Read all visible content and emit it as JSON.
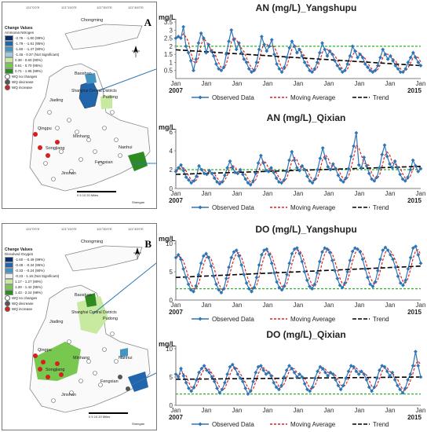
{
  "panels": [
    {
      "letter": "A",
      "legend_title": "Change Values",
      "legend_subtitle": "Ammonia Nitrogen",
      "legend_items": [
        {
          "label": "-2.76 - -1.80 (99%)",
          "color": "#08306b"
        },
        {
          "label": "-1.79 - -1.61 (95%)",
          "color": "#2166ac"
        },
        {
          "label": "-1.60 - -1.47 (90%)",
          "color": "#4393c3"
        },
        {
          "label": "-1.46 - 0.37 (Not Significant)",
          "color": "#9ecae1"
        },
        {
          "label": "0.38 - 0.60 (90%)",
          "color": "#c7e9a0"
        },
        {
          "label": "0.61 - 0.70 (95%)",
          "color": "#78c850"
        },
        {
          "label": "0.71 - 1.95 (99%)",
          "color": "#2e8b22"
        }
      ],
      "point_items": [
        {
          "label": "WQ no changes",
          "color": "#ffffff"
        },
        {
          "label": "WQ decrease",
          "color": "#555555"
        },
        {
          "label": "WQ increase",
          "color": "#d42020"
        }
      ]
    },
    {
      "letter": "B",
      "legend_title": "Change Values",
      "legend_subtitle": "Dissolved Oxygen",
      "legend_items": [
        {
          "label": "-1.60 - -0.49 (99%)",
          "color": "#08306b"
        },
        {
          "label": "-0.48 - -0.34 (95%)",
          "color": "#2166ac"
        },
        {
          "label": "-0.33 - -0.24 (90%)",
          "color": "#4393c3"
        },
        {
          "label": "-0.23 - 1.16 (Not Significant)",
          "color": "#f0f0f0"
        },
        {
          "label": "1.17 - 1.27 (90%)",
          "color": "#c7e9a0"
        },
        {
          "label": "1.28 - 1.42 (95%)",
          "color": "#78c850"
        },
        {
          "label": "1.43 - 2.24 (99%)",
          "color": "#2e8b22"
        }
      ],
      "point_items": [
        {
          "label": "WQ no changes",
          "color": "#ffffff"
        },
        {
          "label": "WQ decrease",
          "color": "#555555"
        },
        {
          "label": "WQ increase",
          "color": "#d42020"
        }
      ]
    }
  ],
  "map_labels": [
    "Chongming",
    "Baoshan",
    "Jiading",
    "Shanghai Central Districts",
    "Pudong",
    "Qingpu",
    "Minhang",
    "Songjiang",
    "Nanhui",
    "Fengxian",
    "Jinshan"
  ],
  "map_scale": [
    "0",
    "5",
    "10",
    "20",
    "Miles"
  ],
  "map_credit": "Shengan",
  "graticule": [
    "121°0'0\"E",
    "121°15'0\"E",
    "121°30'0\"E",
    "121°45'0\"E",
    "31°45'0\"N",
    "31°30'0\"N",
    "31°15'0\"N",
    "31°0'0\"N"
  ],
  "colors": {
    "observed": "#2e75b6",
    "moving": "#e02020",
    "trend": "#000000",
    "threshold": "#2db52d"
  },
  "chart_data": [
    {
      "type": "line",
      "title": "AN (mg/L)_Yangshupu",
      "ylabel": "mg/L",
      "ylim": [
        0,
        3.5
      ],
      "yticks": [
        0.5,
        1,
        1.5,
        2,
        2.5,
        3,
        3.5
      ],
      "ytick_labels": [
        "0.5",
        "1",
        "1.5",
        "2",
        "2.5",
        "3",
        "3.5"
      ],
      "x_start_label": "2007",
      "x_end_label": "2015",
      "month_labels": [
        "Jan",
        "Jan",
        "Jan",
        "Jan",
        "Jan",
        "Jan",
        "Jan",
        "Jan",
        "Jan"
      ],
      "threshold": 2.0,
      "trend": [
        1.78,
        0.8
      ],
      "legend": [
        "Observed Data",
        "Moving Average",
        "Trend"
      ],
      "values": [
        2.5,
        2.6,
        2.5,
        3.2,
        2.0,
        1.6,
        1.1,
        0.5,
        1.2,
        2.2,
        2.8,
        2.5,
        1.6,
        2.1,
        1.7,
        1.4,
        0.9,
        0.6,
        0.5,
        0.7,
        1.5,
        2.3,
        3.0,
        2.4,
        1.8,
        2.2,
        1.6,
        1.2,
        1.0,
        0.6,
        0.4,
        0.5,
        1.0,
        1.8,
        2.6,
        2.1,
        1.7,
        2.0,
        2.4,
        1.5,
        0.9,
        0.6,
        0.4,
        0.7,
        1.3,
        1.9,
        2.3,
        2.0,
        1.6,
        1.8,
        1.4,
        1.0,
        0.8,
        0.5,
        0.4,
        0.6,
        1.0,
        1.6,
        2.2,
        1.8,
        1.4,
        1.7,
        1.5,
        1.1,
        0.8,
        0.6,
        0.4,
        0.5,
        0.9,
        1.4,
        2.0,
        1.7,
        1.3,
        1.5,
        1.3,
        0.9,
        0.7,
        0.5,
        0.4,
        0.5,
        0.8,
        1.3,
        1.8,
        1.5,
        1.2,
        1.4,
        1.1,
        0.8,
        0.6,
        0.4,
        0.4,
        0.6,
        1.0,
        1.3,
        1.6,
        1.3,
        1.0,
        0.8
      ]
    },
    {
      "type": "line",
      "title": "AN (mg/L)_Qixian",
      "ylabel": "mg/L",
      "ylim": [
        0,
        6
      ],
      "yticks": [
        0,
        2,
        4,
        6
      ],
      "ytick_labels": [
        "0",
        "2",
        "4",
        "6"
      ],
      "x_start_label": "2007",
      "x_end_label": "2015",
      "month_labels": [
        "Jan",
        "Jan",
        "Jan",
        "Jan",
        "Jan",
        "Jan",
        "Jan",
        "Jan",
        "Jan"
      ],
      "threshold": 2.0,
      "trend": [
        1.5,
        2.35
      ],
      "legend": [
        "Observed Data",
        "Moving Average",
        "Trend"
      ],
      "values": [
        1.8,
        2.2,
        2.5,
        1.9,
        1.2,
        0.9,
        0.6,
        0.8,
        1.3,
        2.4,
        2.0,
        1.6,
        1.5,
        1.9,
        1.6,
        1.1,
        0.7,
        0.5,
        0.7,
        1.4,
        2.2,
        2.9,
        2.2,
        1.7,
        1.6,
        2.0,
        1.5,
        1.0,
        0.6,
        0.4,
        0.8,
        1.6,
        2.7,
        3.5,
        2.7,
        1.9,
        1.8,
        2.2,
        1.7,
        1.1,
        0.7,
        0.6,
        0.9,
        1.8,
        3.0,
        3.9,
        3.0,
        2.2,
        1.9,
        2.4,
        2.0,
        1.3,
        0.8,
        0.6,
        1.0,
        2.0,
        3.2,
        4.3,
        3.2,
        2.3,
        2.0,
        2.6,
        2.1,
        1.4,
        0.9,
        0.7,
        1.1,
        2.1,
        3.4,
        4.5,
        5.9,
        2.5,
        2.2,
        3.3,
        2.4,
        1.6,
        1.0,
        0.8,
        1.2,
        2.2,
        3.6,
        4.6,
        3.4,
        2.6,
        2.2,
        2.9,
        2.2,
        1.5,
        1.0,
        0.8,
        1.2,
        2.0,
        3.0,
        2.4,
        1.8,
        2.1
      ]
    },
    {
      "type": "line",
      "title": "DO (mg/L)_Yangshupu",
      "ylabel": "mg/L",
      "ylim": [
        0,
        10
      ],
      "yticks": [
        0,
        5,
        10
      ],
      "ytick_labels": [
        "0",
        "5",
        "10"
      ],
      "x_start_label": "2007",
      "x_end_label": "2015",
      "month_labels": [
        "Jan",
        "Jan",
        "Jan",
        "Jan",
        "Jan",
        "Jan",
        "Jan",
        "Jan",
        "Jan"
      ],
      "threshold": 2.0,
      "trend": [
        4.0,
        6.0
      ],
      "legend": [
        "Observed Data",
        "Moving Average",
        "Trend"
      ],
      "values": [
        7.5,
        8.0,
        7.2,
        5.5,
        4.0,
        2.8,
        1.8,
        1.5,
        2.5,
        4.5,
        6.5,
        7.8,
        8.2,
        7.5,
        6.0,
        4.2,
        2.8,
        1.8,
        1.3,
        2.0,
        3.8,
        5.8,
        7.5,
        8.5,
        8.8,
        7.8,
        6.2,
        4.5,
        3.0,
        2.0,
        1.5,
        2.2,
        4.0,
        6.2,
        8.0,
        8.8,
        9.0,
        8.0,
        6.5,
        4.8,
        3.2,
        2.2,
        1.8,
        2.5,
        4.5,
        6.5,
        8.2,
        9.0,
        9.2,
        8.2,
        6.8,
        5.0,
        3.5,
        2.4,
        2.0,
        2.8,
        4.8,
        6.8,
        8.5,
        9.2,
        9.0,
        8.4,
        7.0,
        5.2,
        3.8,
        2.6,
        2.2,
        3.0,
        5.0,
        7.0,
        8.6,
        9.2,
        9.0,
        8.5,
        7.2,
        5.5,
        4.0,
        2.8,
        2.4,
        3.2,
        5.2,
        7.2,
        8.8,
        9.3,
        8.8,
        8.0,
        7.2,
        5.8,
        4.2,
        3.0,
        2.6,
        3.5,
        5.5,
        7.5,
        9.2,
        9.5,
        8.0,
        6.5
      ]
    },
    {
      "type": "line",
      "title": "DO (mg/L)_Qixian",
      "ylabel": "mg/L",
      "ylim": [
        0,
        10
      ],
      "yticks": [
        0,
        5,
        10
      ],
      "ytick_labels": [
        "0",
        "5",
        "10"
      ],
      "x_start_label": "2007",
      "x_end_label": "2015",
      "month_labels": [
        "Jan",
        "Jan",
        "Jan",
        "Jan",
        "Jan",
        "Jan",
        "Jan",
        "Jan",
        "Jan"
      ],
      "threshold": 2.0,
      "trend": [
        4.6,
        5.0
      ],
      "legend": [
        "Observed Data",
        "Moving Average",
        "Trend"
      ],
      "values": [
        5.5,
        5.0,
        6.5,
        5.2,
        4.0,
        3.0,
        2.5,
        3.2,
        4.5,
        5.8,
        6.5,
        7.0,
        6.2,
        5.8,
        5.0,
        4.2,
        3.0,
        2.2,
        2.8,
        4.0,
        5.5,
        6.8,
        7.2,
        6.5,
        5.5,
        4.8,
        4.2,
        3.0,
        2.0,
        2.5,
        4.2,
        5.8,
        6.8,
        7.0,
        6.2,
        5.5,
        5.8,
        5.2,
        4.0,
        3.2,
        2.8,
        3.5,
        5.0,
        6.2,
        7.0,
        6.5,
        5.8,
        5.0,
        5.5,
        5.0,
        3.8,
        2.8,
        2.5,
        3.2,
        4.8,
        6.0,
        6.8,
        6.5,
        5.8,
        5.2,
        5.8,
        5.5,
        4.5,
        3.5,
        2.8,
        3.5,
        4.8,
        6.0,
        7.0,
        6.8,
        6.0,
        5.5,
        6.0,
        5.5,
        4.5,
        3.2,
        2.5,
        3.2,
        4.8,
        6.2,
        7.0,
        6.8,
        6.0,
        5.2,
        5.8,
        4.5,
        3.5,
        2.8,
        2.2,
        3.0,
        4.5,
        5.5,
        7.0,
        9.5,
        7.0,
        5.0
      ]
    }
  ]
}
